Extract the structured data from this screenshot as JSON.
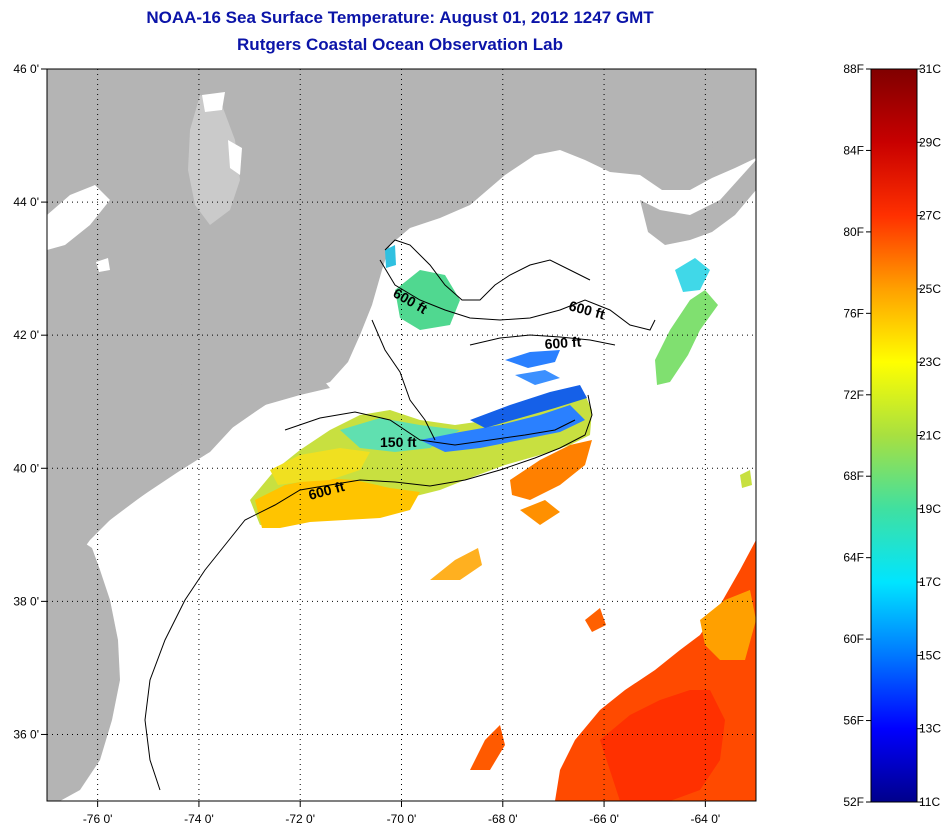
{
  "header": {
    "title": "NOAA-16 Sea Surface Temperature:  August 01, 2012 1247 GMT",
    "subtitle": "Rutgers Coastal Ocean Observation Lab"
  },
  "map": {
    "lon_range": [
      -77,
      -63
    ],
    "lat_range": [
      35,
      46
    ],
    "lon_ticks": [
      {
        "value": -76,
        "label": "-76 0'"
      },
      {
        "value": -74,
        "label": "-74 0'"
      },
      {
        "value": -72,
        "label": "-72 0'"
      },
      {
        "value": -70,
        "label": "-70 0'"
      },
      {
        "value": -68,
        "label": "-68 0'"
      },
      {
        "value": -66,
        "label": "-66 0'"
      },
      {
        "value": -64,
        "label": "-64 0'"
      }
    ],
    "lat_ticks": [
      {
        "value": 36,
        "label": "36 0'"
      },
      {
        "value": 38,
        "label": "38 0'"
      },
      {
        "value": 40,
        "label": "40 0'"
      },
      {
        "value": 42,
        "label": "42 0'"
      },
      {
        "value": 44,
        "label": "44 0'"
      },
      {
        "value": 46,
        "label": "46 0'"
      }
    ],
    "grid": "dotted",
    "land_color": "#b4b4b4",
    "contour_labels": [
      "600 ft",
      "600 ft",
      "600 ft",
      "150 ft",
      "600 ft"
    ]
  },
  "colorbar": {
    "fahrenheit": [
      {
        "value": 88,
        "label": "88F"
      },
      {
        "value": 84,
        "label": "84F"
      },
      {
        "value": 80,
        "label": "80F"
      },
      {
        "value": 76,
        "label": "76F"
      },
      {
        "value": 72,
        "label": "72F"
      },
      {
        "value": 68,
        "label": "68F"
      },
      {
        "value": 64,
        "label": "64F"
      },
      {
        "value": 60,
        "label": "60F"
      },
      {
        "value": 56,
        "label": "56F"
      },
      {
        "value": 52,
        "label": "52F"
      }
    ],
    "celsius": [
      {
        "value": 31,
        "label": "31C"
      },
      {
        "value": 29,
        "label": "29C"
      },
      {
        "value": 27,
        "label": "27C"
      },
      {
        "value": 25,
        "label": "25C"
      },
      {
        "value": 23,
        "label": "23C"
      },
      {
        "value": 21,
        "label": "21C"
      },
      {
        "value": 19,
        "label": "19C"
      },
      {
        "value": 17,
        "label": "17C"
      },
      {
        "value": 15,
        "label": "15C"
      },
      {
        "value": 13,
        "label": "13C"
      },
      {
        "value": 11,
        "label": "11C"
      }
    ],
    "stops": [
      "#00008b",
      "#0000ff",
      "#0078ff",
      "#00e5ff",
      "#40e0a0",
      "#a8e040",
      "#ffff00",
      "#ffa000",
      "#ff3000",
      "#c80000",
      "#800000"
    ]
  }
}
